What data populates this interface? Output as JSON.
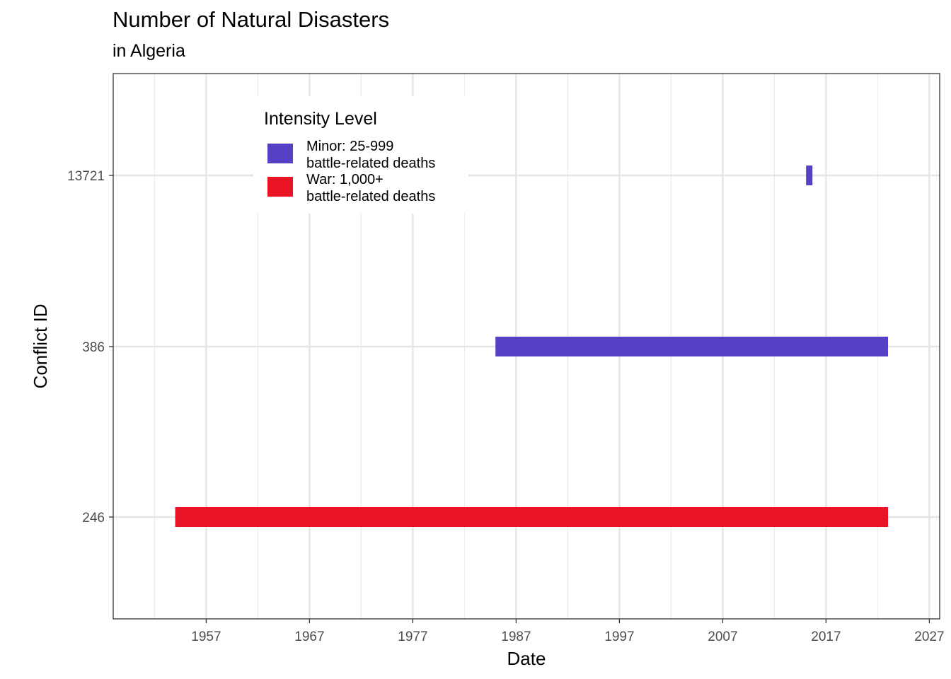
{
  "chart_data": {
    "type": "bar",
    "orientation": "horizontal-range",
    "title": "Number of Natural Disasters",
    "subtitle": "in Algeria",
    "xlabel": "Date",
    "ylabel": "Conflict ID",
    "x_axis": {
      "type": "date",
      "ticks": [
        "1957",
        "1967",
        "1977",
        "1987",
        "1997",
        "2007",
        "2017",
        "2027"
      ],
      "minor_ticks": [
        "1952",
        "1962",
        "1972",
        "1982",
        "1992",
        "2002",
        "2012",
        "2022"
      ],
      "xlim": [
        "1948",
        "2028"
      ]
    },
    "y_axis": {
      "type": "category",
      "categories": [
        "246",
        "386",
        "13721"
      ]
    },
    "grid": true,
    "legend": {
      "title": "Intensity Level",
      "placement": "top-left",
      "entries": [
        {
          "label_line1": "Minor: 25-999",
          "label_line2": "battle-related deaths",
          "color": "#5840C4"
        },
        {
          "label_line1": "War: 1,000+",
          "label_line2": "battle-related deaths",
          "color": "#E81424"
        }
      ]
    },
    "series": [
      {
        "conflict_id": "246",
        "start": "1954",
        "end": "2022",
        "intensity": "War: 1,000+",
        "color": "#E81424"
      },
      {
        "conflict_id": "386",
        "start": "1985",
        "end": "2022",
        "intensity": "Minor: 25-999",
        "color": "#5840C4"
      },
      {
        "conflict_id": "13721",
        "start": "2015",
        "end": "2015",
        "intensity": "Minor: 25-999",
        "color": "#5840C4"
      }
    ]
  }
}
